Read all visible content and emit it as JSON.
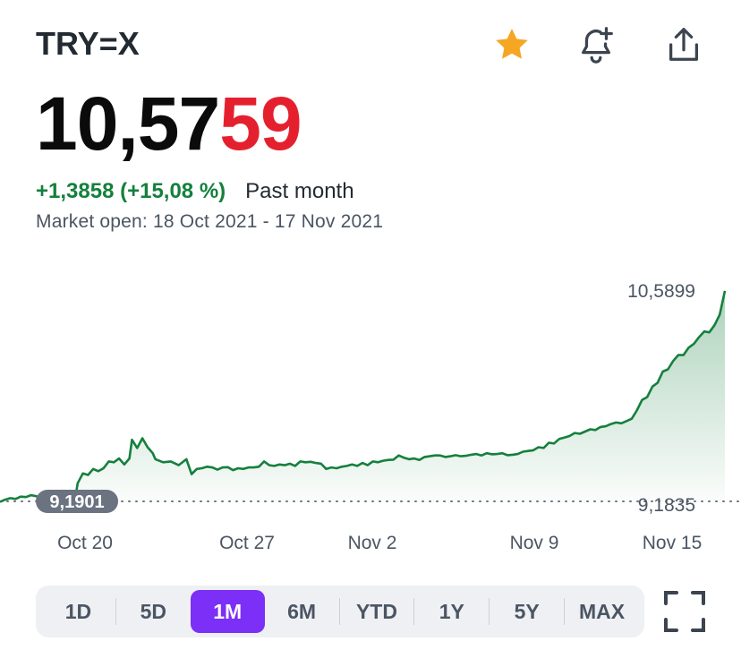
{
  "header": {
    "symbol": "TRY=X",
    "price_main": "10,57",
    "price_highlight": "59",
    "change": "+1,3858 (+15,08 %)",
    "period": "Past month",
    "market": "Market open: 18 Oct 2021 - 17 Nov 2021",
    "icons": [
      "star-icon",
      "bell-plus-icon",
      "share-icon"
    ]
  },
  "colors": {
    "up": "#15803d",
    "highlight": "#e5202e",
    "accent": "#7b2ff7",
    "star": "#f5a623"
  },
  "range": {
    "options": [
      "1D",
      "5D",
      "1M",
      "6M",
      "YTD",
      "1Y",
      "5Y",
      "MAX"
    ],
    "selected": "1M"
  },
  "chart_data": {
    "type": "area",
    "x_tick_labels": [
      "Oct 20",
      "Oct 27",
      "Nov 2",
      "Nov 9",
      "Nov 15"
    ],
    "high_label": "10,5899",
    "baseline_label": "9,1835",
    "start_label": "9,1901",
    "ylim": [
      9.07,
      10.63
    ],
    "grid": false,
    "series": [
      {
        "values": [
          [
            18.0,
            9.18
          ],
          [
            18.2,
            9.195
          ],
          [
            18.4,
            9.205
          ],
          [
            18.6,
            9.2
          ],
          [
            18.8,
            9.215
          ],
          [
            19.0,
            9.212
          ],
          [
            19.2,
            9.225
          ],
          [
            19.4,
            9.218
          ],
          [
            19.6,
            9.205
          ],
          [
            19.8,
            9.222
          ],
          [
            20.0,
            9.208
          ],
          [
            20.2,
            9.215
          ],
          [
            20.4,
            9.219
          ],
          [
            20.6,
            9.19
          ],
          [
            20.8,
            9.195
          ],
          [
            20.9,
            9.2
          ],
          [
            21.0,
            9.305
          ],
          [
            21.2,
            9.37
          ],
          [
            21.4,
            9.36
          ],
          [
            21.6,
            9.4
          ],
          [
            21.8,
            9.385
          ],
          [
            22.0,
            9.405
          ],
          [
            22.2,
            9.45
          ],
          [
            22.4,
            9.445
          ],
          [
            22.6,
            9.47
          ],
          [
            22.8,
            9.43
          ],
          [
            23.0,
            9.47
          ],
          [
            23.1,
            9.595
          ],
          [
            23.3,
            9.54
          ],
          [
            23.5,
            9.605
          ],
          [
            23.7,
            9.545
          ],
          [
            23.9,
            9.505
          ],
          [
            24.0,
            9.465
          ],
          [
            24.3,
            9.445
          ],
          [
            24.6,
            9.45
          ],
          [
            24.9,
            9.425
          ],
          [
            25.2,
            9.465
          ],
          [
            25.4,
            9.365
          ],
          [
            25.6,
            9.4
          ],
          [
            25.8,
            9.405
          ],
          [
            26.0,
            9.415
          ],
          [
            26.2,
            9.41
          ],
          [
            26.4,
            9.395
          ],
          [
            26.6,
            9.41
          ],
          [
            26.8,
            9.412
          ],
          [
            27.0,
            9.392
          ],
          [
            27.2,
            9.405
          ],
          [
            27.4,
            9.4
          ],
          [
            27.6,
            9.41
          ],
          [
            27.8,
            9.41
          ],
          [
            28.0,
            9.415
          ],
          [
            28.2,
            9.45
          ],
          [
            28.4,
            9.425
          ],
          [
            28.6,
            9.42
          ],
          [
            28.8,
            9.43
          ],
          [
            29.0,
            9.425
          ],
          [
            29.2,
            9.435
          ],
          [
            29.4,
            9.42
          ],
          [
            29.6,
            9.45
          ],
          [
            29.8,
            9.445
          ],
          [
            30.0,
            9.448
          ],
          [
            30.2,
            9.44
          ],
          [
            30.4,
            9.435
          ],
          [
            30.6,
            9.4
          ],
          [
            30.8,
            9.41
          ],
          [
            31.0,
            9.405
          ],
          [
            31.2,
            9.415
          ],
          [
            31.4,
            9.42
          ],
          [
            31.6,
            9.43
          ],
          [
            31.8,
            9.42
          ],
          [
            32.0,
            9.44
          ],
          [
            32.2,
            9.425
          ],
          [
            32.4,
            9.45
          ],
          [
            32.6,
            9.445
          ],
          [
            32.8,
            9.455
          ],
          [
            33.0,
            9.46
          ],
          [
            33.2,
            9.462
          ],
          [
            33.4,
            9.49
          ],
          [
            33.6,
            9.475
          ],
          [
            33.8,
            9.465
          ],
          [
            34.0,
            9.47
          ],
          [
            34.2,
            9.46
          ],
          [
            34.4,
            9.48
          ],
          [
            34.6,
            9.485
          ],
          [
            34.8,
            9.49
          ],
          [
            35.0,
            9.49
          ],
          [
            35.2,
            9.48
          ],
          [
            35.4,
            9.485
          ],
          [
            35.6,
            9.492
          ],
          [
            35.8,
            9.485
          ],
          [
            36.0,
            9.488
          ],
          [
            36.2,
            9.495
          ],
          [
            36.4,
            9.5
          ],
          [
            36.6,
            9.49
          ],
          [
            36.8,
            9.505
          ],
          [
            37.0,
            9.498
          ],
          [
            37.2,
            9.5
          ],
          [
            37.4,
            9.505
          ],
          [
            37.6,
            9.492
          ],
          [
            37.8,
            9.495
          ],
          [
            38.0,
            9.5
          ],
          [
            38.2,
            9.515
          ],
          [
            38.4,
            9.52
          ],
          [
            38.6,
            9.525
          ],
          [
            38.8,
            9.545
          ],
          [
            39.0,
            9.54
          ],
          [
            39.2,
            9.575
          ],
          [
            39.4,
            9.57
          ],
          [
            39.6,
            9.6
          ],
          [
            39.8,
            9.61
          ],
          [
            40.0,
            9.62
          ],
          [
            40.2,
            9.64
          ],
          [
            40.4,
            9.635
          ],
          [
            40.6,
            9.65
          ],
          [
            40.8,
            9.665
          ],
          [
            41.0,
            9.66
          ],
          [
            41.2,
            9.68
          ],
          [
            41.4,
            9.685
          ],
          [
            41.6,
            9.7
          ],
          [
            41.8,
            9.71
          ],
          [
            42.0,
            9.705
          ],
          [
            42.2,
            9.72
          ],
          [
            42.4,
            9.735
          ],
          [
            42.6,
            9.79
          ],
          [
            42.8,
            9.86
          ],
          [
            43.0,
            9.88
          ],
          [
            43.2,
            9.95
          ],
          [
            43.4,
            9.975
          ],
          [
            43.6,
            10.05
          ],
          [
            43.8,
            10.065
          ],
          [
            44.0,
            10.12
          ],
          [
            44.2,
            10.16
          ],
          [
            44.4,
            10.16
          ],
          [
            44.6,
            10.21
          ],
          [
            44.8,
            10.235
          ],
          [
            45.0,
            10.28
          ],
          [
            45.2,
            10.318
          ],
          [
            45.4,
            10.312
          ],
          [
            45.6,
            10.36
          ],
          [
            45.8,
            10.43
          ],
          [
            46.0,
            10.589
          ]
        ]
      }
    ]
  }
}
